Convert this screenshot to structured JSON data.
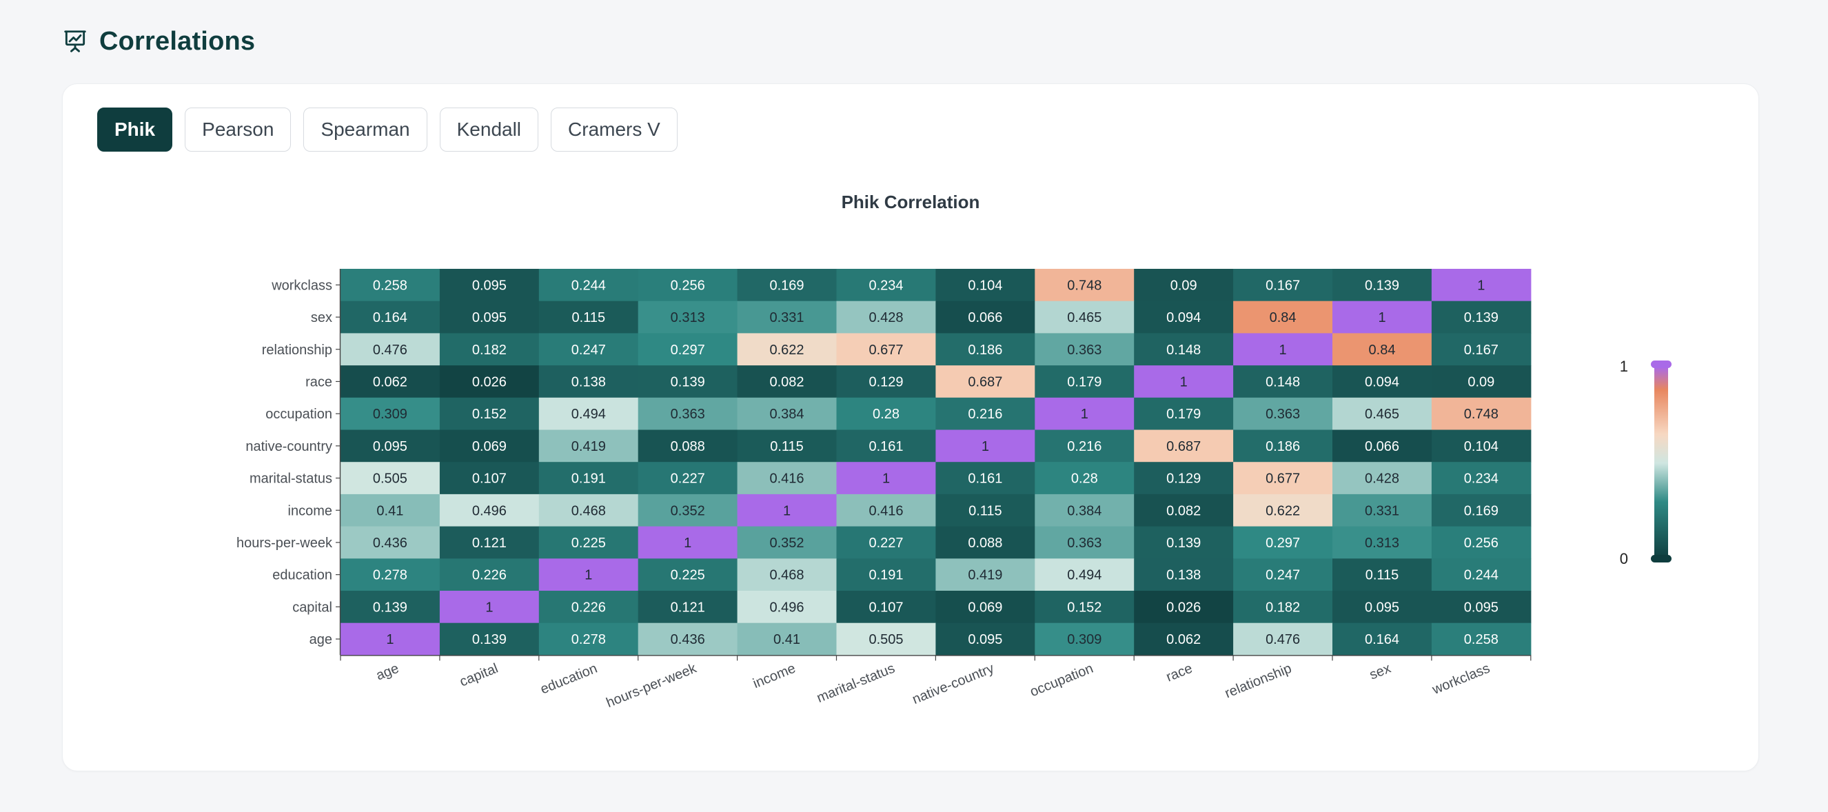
{
  "header": {
    "title": "Correlations",
    "icon": "presentation-chart-icon"
  },
  "tabs": [
    {
      "label": "Phik",
      "active": true
    },
    {
      "label": "Pearson",
      "active": false
    },
    {
      "label": "Spearman",
      "active": false
    },
    {
      "label": "Kendall",
      "active": false
    },
    {
      "label": "Cramers V",
      "active": false
    }
  ],
  "colors": {
    "accent": "#0f3d3e",
    "scale": [
      "#0f3d3e",
      "#2f8a85",
      "#cfe6e1",
      "#f7d8c2",
      "#e8875f",
      "#a96ae8"
    ]
  },
  "chart_data": {
    "type": "heatmap",
    "title": "Phik Correlation",
    "x_categories": [
      "age",
      "capital",
      "education",
      "hours-per-week",
      "income",
      "marital-status",
      "native-country",
      "occupation",
      "race",
      "relationship",
      "sex",
      "workclass"
    ],
    "y_categories": [
      "workclass",
      "sex",
      "relationship",
      "race",
      "occupation",
      "native-country",
      "marital-status",
      "income",
      "hours-per-week",
      "education",
      "capital",
      "age"
    ],
    "values": [
      [
        "0.258",
        "0.095",
        "0.244",
        "0.256",
        "0.169",
        "0.234",
        "0.104",
        "0.748",
        "0.09",
        "0.167",
        "0.139",
        "1"
      ],
      [
        "0.164",
        "0.095",
        "0.115",
        "0.313",
        "0.331",
        "0.428",
        "0.066",
        "0.465",
        "0.094",
        "0.84",
        "1",
        "0.139"
      ],
      [
        "0.476",
        "0.182",
        "0.247",
        "0.297",
        "0.622",
        "0.677",
        "0.186",
        "0.363",
        "0.148",
        "1",
        "0.84",
        "0.167"
      ],
      [
        "0.062",
        "0.026",
        "0.138",
        "0.139",
        "0.082",
        "0.129",
        "0.687",
        "0.179",
        "1",
        "0.148",
        "0.094",
        "0.09"
      ],
      [
        "0.309",
        "0.152",
        "0.494",
        "0.363",
        "0.384",
        "0.28",
        "0.216",
        "1",
        "0.179",
        "0.363",
        "0.465",
        "0.748"
      ],
      [
        "0.095",
        "0.069",
        "0.419",
        "0.088",
        "0.115",
        "0.161",
        "1",
        "0.216",
        "0.687",
        "0.186",
        "0.066",
        "0.104"
      ],
      [
        "0.505",
        "0.107",
        "0.191",
        "0.227",
        "0.416",
        "1",
        "0.161",
        "0.28",
        "0.129",
        "0.677",
        "0.428",
        "0.234"
      ],
      [
        "0.41",
        "0.496",
        "0.468",
        "0.352",
        "1",
        "0.416",
        "0.115",
        "0.384",
        "0.082",
        "0.622",
        "0.331",
        "0.169"
      ],
      [
        "0.436",
        "0.121",
        "0.225",
        "1",
        "0.352",
        "0.227",
        "0.088",
        "0.363",
        "0.139",
        "0.297",
        "0.313",
        "0.256"
      ],
      [
        "0.278",
        "0.226",
        "1",
        "0.225",
        "0.468",
        "0.191",
        "0.419",
        "0.494",
        "0.138",
        "0.247",
        "0.115",
        "0.244"
      ],
      [
        "0.139",
        "1",
        "0.226",
        "0.121",
        "0.496",
        "0.107",
        "0.069",
        "0.152",
        "0.026",
        "0.182",
        "0.095",
        "0.095"
      ],
      [
        "1",
        "0.139",
        "0.278",
        "0.436",
        "0.41",
        "0.505",
        "0.095",
        "0.309",
        "0.062",
        "0.476",
        "0.164",
        "0.258"
      ]
    ],
    "legend": {
      "type": "color-scale",
      "min_label": "0",
      "max_label": "1",
      "range": [
        0,
        1
      ],
      "position": "right"
    },
    "grid": false
  }
}
